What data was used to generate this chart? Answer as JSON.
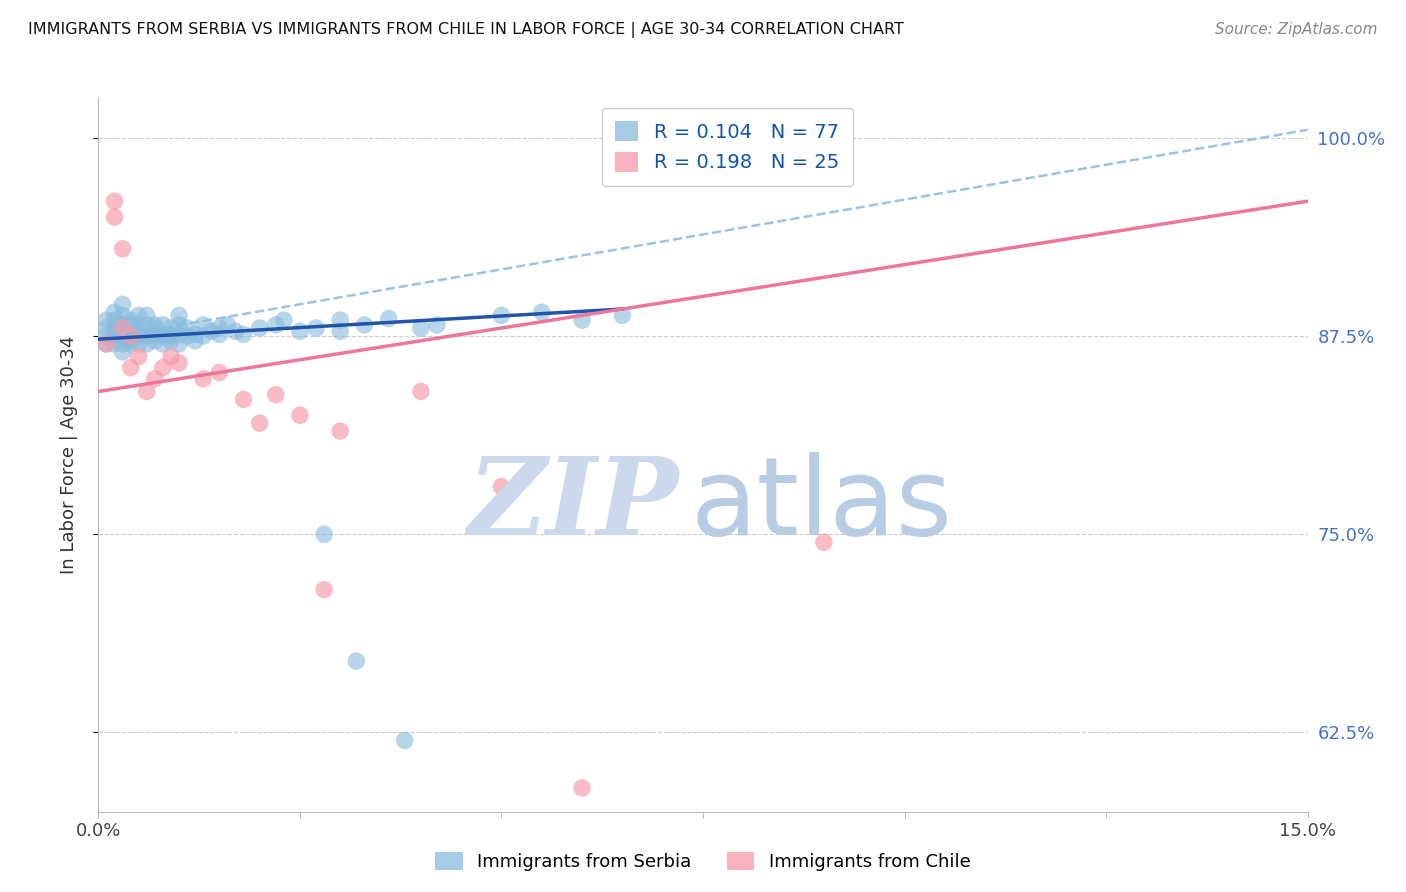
{
  "title": "IMMIGRANTS FROM SERBIA VS IMMIGRANTS FROM CHILE IN LABOR FORCE | AGE 30-34 CORRELATION CHART",
  "source": "Source: ZipAtlas.com",
  "ylabel": "In Labor Force | Age 30-34",
  "xlim": [
    0.0,
    0.15
  ],
  "ylim": [
    0.575,
    1.025
  ],
  "serbia_R": 0.104,
  "serbia_N": 77,
  "chile_R": 0.198,
  "chile_N": 25,
  "serbia_color": "#88bbdd",
  "chile_color": "#f799aa",
  "serbia_line_color": "#2255aa",
  "chile_line_color": "#ee7799",
  "dashed_line_color": "#88bbdd",
  "background_color": "#ffffff",
  "grid_color": "#cccccc",
  "serbia_x": [
    0.001,
    0.001,
    0.001,
    0.001,
    0.002,
    0.002,
    0.002,
    0.002,
    0.002,
    0.002,
    0.003,
    0.003,
    0.003,
    0.003,
    0.003,
    0.003,
    0.004,
    0.004,
    0.004,
    0.004,
    0.004,
    0.004,
    0.005,
    0.005,
    0.005,
    0.005,
    0.005,
    0.006,
    0.006,
    0.006,
    0.006,
    0.007,
    0.007,
    0.007,
    0.007,
    0.007,
    0.008,
    0.008,
    0.008,
    0.008,
    0.009,
    0.009,
    0.009,
    0.01,
    0.01,
    0.01,
    0.01,
    0.011,
    0.011,
    0.012,
    0.012,
    0.013,
    0.013,
    0.014,
    0.015,
    0.015,
    0.016,
    0.017,
    0.018,
    0.02,
    0.022,
    0.023,
    0.025,
    0.027,
    0.03,
    0.03,
    0.033,
    0.036,
    0.04,
    0.042,
    0.05,
    0.055,
    0.06,
    0.065,
    0.028,
    0.032,
    0.038
  ],
  "serbia_y": [
    0.875,
    0.88,
    0.885,
    0.87,
    0.88,
    0.885,
    0.875,
    0.87,
    0.89,
    0.878,
    0.875,
    0.882,
    0.87,
    0.865,
    0.888,
    0.895,
    0.878,
    0.882,
    0.875,
    0.87,
    0.885,
    0.872,
    0.876,
    0.882,
    0.87,
    0.888,
    0.878,
    0.875,
    0.87,
    0.882,
    0.888,
    0.875,
    0.88,
    0.872,
    0.878,
    0.882,
    0.876,
    0.87,
    0.882,
    0.875,
    0.872,
    0.88,
    0.875,
    0.876,
    0.87,
    0.882,
    0.888,
    0.875,
    0.88,
    0.872,
    0.876,
    0.875,
    0.882,
    0.878,
    0.876,
    0.88,
    0.882,
    0.878,
    0.876,
    0.88,
    0.882,
    0.885,
    0.878,
    0.88,
    0.885,
    0.878,
    0.882,
    0.886,
    0.88,
    0.882,
    0.888,
    0.89,
    0.885,
    0.888,
    0.75,
    0.67,
    0.62
  ],
  "chile_x": [
    0.001,
    0.002,
    0.002,
    0.003,
    0.003,
    0.004,
    0.004,
    0.005,
    0.006,
    0.007,
    0.008,
    0.009,
    0.01,
    0.013,
    0.015,
    0.018,
    0.02,
    0.022,
    0.025,
    0.028,
    0.03,
    0.04,
    0.05,
    0.09,
    0.06
  ],
  "chile_y": [
    0.87,
    0.96,
    0.95,
    0.93,
    0.88,
    0.855,
    0.875,
    0.862,
    0.84,
    0.848,
    0.855,
    0.862,
    0.858,
    0.848,
    0.852,
    0.835,
    0.82,
    0.838,
    0.825,
    0.715,
    0.815,
    0.84,
    0.78,
    0.745,
    0.59
  ],
  "serbia_line_x": [
    0.0,
    0.065
  ],
  "serbia_line_y": [
    0.873,
    0.892
  ],
  "chile_line_x": [
    0.0,
    0.15
  ],
  "chile_line_y": [
    0.84,
    0.96
  ],
  "dash_line_x": [
    0.0,
    0.15
  ],
  "dash_line_y": [
    0.873,
    1.005
  ],
  "watermark_ZIP_color": "#ccd8ec",
  "watermark_atlas_color": "#b8cce4",
  "ytick_vals": [
    0.625,
    0.75,
    0.875,
    1.0
  ],
  "ytick_labels": [
    "62.5%",
    "75.0%",
    "87.5%",
    "100.0%"
  ],
  "xtick_vals": [
    0.0,
    0.025,
    0.05,
    0.075,
    0.1,
    0.125,
    0.15
  ],
  "xtick_labels": [
    "0.0%",
    "",
    "",
    "",
    "",
    "",
    "15.0%"
  ]
}
